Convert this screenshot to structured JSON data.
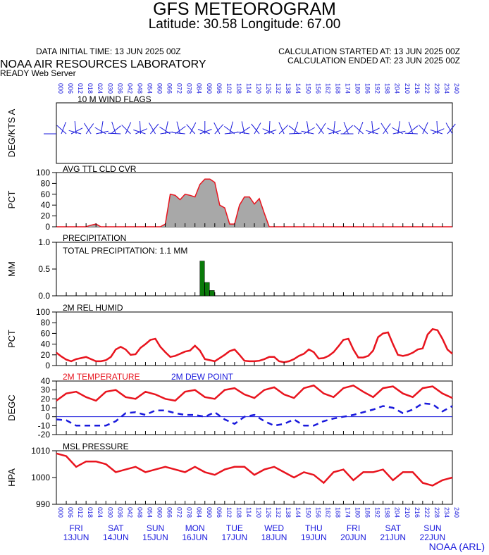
{
  "header": {
    "title": "GFS METEOROGRAM",
    "subtitle": "Latitude: 30.58 Longitude:  67.00",
    "data_initial_time": "DATA INITIAL TIME: 13 JUN 2025 00Z",
    "calc_started": "CALCULATION STARTED AT: 13 JUN 2025 00Z",
    "calc_ended": "CALCULATION ENDED AT: 23 JUN 2025 00Z",
    "lab": "NOAA AIR RESOURCES LABORATORY",
    "server": "READY Web Server",
    "credit": "NOAA (ARL)"
  },
  "colors": {
    "red": "#e8141e",
    "blue": "#1a1adc",
    "green": "#0a7a0a",
    "cloud_fill": "#a8a8a8"
  },
  "x_axis": {
    "hours": [
      0,
      6,
      12,
      18,
      24,
      30,
      36,
      42,
      48,
      54,
      60,
      66,
      72,
      78,
      84,
      90,
      96,
      102,
      108,
      114,
      120,
      126,
      132,
      138,
      144,
      150,
      156,
      162,
      168,
      174,
      180,
      186,
      192,
      198,
      204,
      210,
      216,
      222,
      228,
      234,
      240
    ],
    "days": [
      {
        "dow": "FRI",
        "date": "13JUN"
      },
      {
        "dow": "SAT",
        "date": "14JUN"
      },
      {
        "dow": "SUN",
        "date": "15JUN"
      },
      {
        "dow": "MON",
        "date": "16JUN"
      },
      {
        "dow": "TUE",
        "date": "17JUN"
      },
      {
        "dow": "WED",
        "date": "18JUN"
      },
      {
        "dow": "THU",
        "date": "19JUN"
      },
      {
        "dow": "FRI",
        "date": "20JUN"
      },
      {
        "dow": "SAT",
        "date": "21JUN"
      },
      {
        "dow": "SUN",
        "date": "22JUN"
      }
    ]
  },
  "chart_data": [
    {
      "type": "wind-barbs",
      "title": "10 M  WIND FLAGS",
      "ylabel": "DEG/KTS  A"
    },
    {
      "type": "area",
      "title": "AVG TTL CLD CVR",
      "ylabel": "PCT",
      "ylim": [
        0,
        100
      ],
      "yticks": [
        "0",
        "20",
        "40",
        "60",
        "80",
        "100"
      ],
      "x": [
        0,
        3,
        6,
        9,
        12,
        15,
        18,
        21,
        24,
        27,
        30,
        33,
        36,
        39,
        42,
        45,
        48,
        51,
        54,
        57,
        60,
        63,
        66,
        69,
        72,
        75,
        78,
        81,
        84,
        87,
        90,
        93,
        96,
        99,
        102,
        105,
        108,
        111,
        114,
        117,
        120,
        123,
        126,
        129,
        132,
        135,
        138,
        141,
        144,
        147,
        150,
        153,
        156,
        159,
        162,
        165,
        168,
        171,
        174,
        177,
        180,
        183,
        186,
        189,
        192,
        195,
        198,
        201,
        204,
        207,
        210,
        213,
        216,
        219,
        222,
        225,
        228,
        231,
        234,
        237,
        240
      ],
      "values": [
        0,
        0,
        0,
        0,
        0,
        0,
        0,
        3,
        5,
        0,
        0,
        0,
        0,
        0,
        0,
        0,
        0,
        0,
        0,
        0,
        0,
        0,
        5,
        60,
        58,
        50,
        60,
        58,
        55,
        78,
        88,
        88,
        82,
        40,
        35,
        5,
        5,
        40,
        55,
        55,
        42,
        52,
        25,
        0,
        0,
        0,
        0,
        0,
        0,
        0,
        0,
        0,
        0,
        0,
        0,
        0,
        0,
        0,
        0,
        0,
        0,
        0,
        0,
        0,
        0,
        0,
        0,
        0,
        0,
        0,
        0,
        0,
        0,
        0,
        0,
        0,
        0,
        0,
        0,
        0,
        0
      ]
    },
    {
      "type": "bar",
      "title": "PRECIPITATION",
      "annotation": "TOTAL PRECIPITATION:   1.1 MM",
      "ylabel": "MM",
      "ylim": [
        0,
        1.0
      ],
      "yticks": [
        "0.0",
        "0.5",
        "1.0"
      ],
      "x": [
        87,
        90,
        93
      ],
      "values": [
        0.65,
        0.25,
        0.1
      ]
    },
    {
      "type": "line",
      "title": "2M REL HUMID",
      "ylabel": "PCT",
      "ylim": [
        0,
        100
      ],
      "yticks": [
        "0",
        "20",
        "40",
        "60",
        "80",
        "100"
      ],
      "x": [
        0,
        3,
        6,
        9,
        12,
        15,
        18,
        21,
        24,
        27,
        30,
        33,
        36,
        39,
        42,
        45,
        48,
        51,
        54,
        57,
        60,
        63,
        66,
        69,
        72,
        75,
        78,
        81,
        84,
        87,
        90,
        93,
        96,
        99,
        102,
        105,
        108,
        111,
        114,
        117,
        120,
        123,
        126,
        129,
        132,
        135,
        138,
        141,
        144,
        147,
        150,
        153,
        156,
        159,
        162,
        165,
        168,
        171,
        174,
        177,
        180,
        183,
        186,
        189,
        192,
        195,
        198,
        201,
        204,
        207,
        210,
        213,
        216,
        219,
        222,
        225,
        228,
        231,
        234,
        237,
        240
      ],
      "values": [
        24,
        17,
        11,
        8,
        12,
        14,
        16,
        12,
        8,
        8,
        10,
        16,
        30,
        35,
        30,
        20,
        21,
        33,
        40,
        48,
        50,
        35,
        25,
        16,
        18,
        22,
        26,
        28,
        37,
        28,
        12,
        10,
        8,
        14,
        20,
        27,
        30,
        20,
        9,
        8,
        8,
        9,
        12,
        16,
        16,
        8,
        6,
        8,
        12,
        18,
        22,
        30,
        25,
        13,
        14,
        18,
        25,
        36,
        48,
        50,
        30,
        15,
        15,
        18,
        28,
        53,
        60,
        62,
        40,
        20,
        18,
        20,
        24,
        30,
        32,
        58,
        68,
        66,
        50,
        30,
        22
      ]
    },
    {
      "type": "line",
      "title": "2M TEMPERATURE",
      "ylabel": "DEGC",
      "ylim": [
        -20,
        40
      ],
      "yticks": [
        "-20",
        "-10",
        "0",
        "10",
        "20",
        "30",
        "40"
      ],
      "series": [
        {
          "name": "2M TEMPERATURE",
          "x": [
            0,
            6,
            12,
            18,
            24,
            30,
            36,
            42,
            48,
            54,
            60,
            66,
            72,
            78,
            84,
            90,
            96,
            102,
            108,
            114,
            120,
            126,
            132,
            138,
            144,
            150,
            156,
            162,
            168,
            174,
            180,
            186,
            192,
            198,
            204,
            210,
            216,
            222,
            228,
            234,
            240
          ],
          "values": [
            18,
            26,
            28,
            22,
            18,
            28,
            30,
            22,
            20,
            28,
            25,
            20,
            18,
            28,
            30,
            22,
            20,
            30,
            32,
            25,
            21,
            30,
            33,
            25,
            21,
            32,
            35,
            26,
            22,
            32,
            35,
            28,
            22,
            32,
            34,
            26,
            22,
            32,
            34,
            26,
            21
          ]
        },
        {
          "name": "2M  DEW POINT",
          "x": [
            0,
            6,
            12,
            18,
            24,
            30,
            36,
            42,
            48,
            54,
            60,
            66,
            72,
            78,
            84,
            90,
            96,
            102,
            108,
            114,
            120,
            126,
            132,
            138,
            144,
            150,
            156,
            162,
            168,
            174,
            180,
            186,
            192,
            198,
            204,
            210,
            216,
            222,
            228,
            234,
            240
          ],
          "values": [
            -3,
            -4,
            -10,
            -10,
            -10,
            -10,
            -5,
            4,
            5,
            2,
            7,
            7,
            4,
            2,
            2,
            0,
            5,
            -3,
            -8,
            0,
            2,
            -5,
            -10,
            -8,
            -3,
            -10,
            -10,
            -5,
            -2,
            0,
            2,
            5,
            8,
            12,
            10,
            4,
            8,
            15,
            14,
            6,
            12
          ]
        }
      ]
    },
    {
      "type": "line",
      "title": "MSL PRESSURE",
      "ylabel": "HPA",
      "ylim": [
        990,
        1010
      ],
      "yticks": [
        "990",
        "1000",
        "1010"
      ],
      "x": [
        0,
        6,
        12,
        18,
        24,
        30,
        36,
        42,
        48,
        54,
        60,
        66,
        72,
        78,
        84,
        90,
        96,
        102,
        108,
        114,
        120,
        126,
        132,
        138,
        144,
        150,
        156,
        162,
        168,
        174,
        180,
        186,
        192,
        198,
        204,
        210,
        216,
        222,
        228,
        234,
        240
      ],
      "values": [
        1009,
        1008,
        1004,
        1006,
        1006,
        1005,
        1002,
        1003,
        1004,
        1002,
        1003,
        1004,
        1003,
        1002,
        1004,
        1002,
        1001,
        1003,
        1004,
        1004,
        1001,
        1003,
        1004,
        1002,
        1000,
        1002,
        1001,
        998,
        1002,
        1003,
        999,
        1002,
        1002,
        1003,
        999,
        1002,
        1002,
        998,
        997,
        999,
        1000
      ]
    }
  ]
}
